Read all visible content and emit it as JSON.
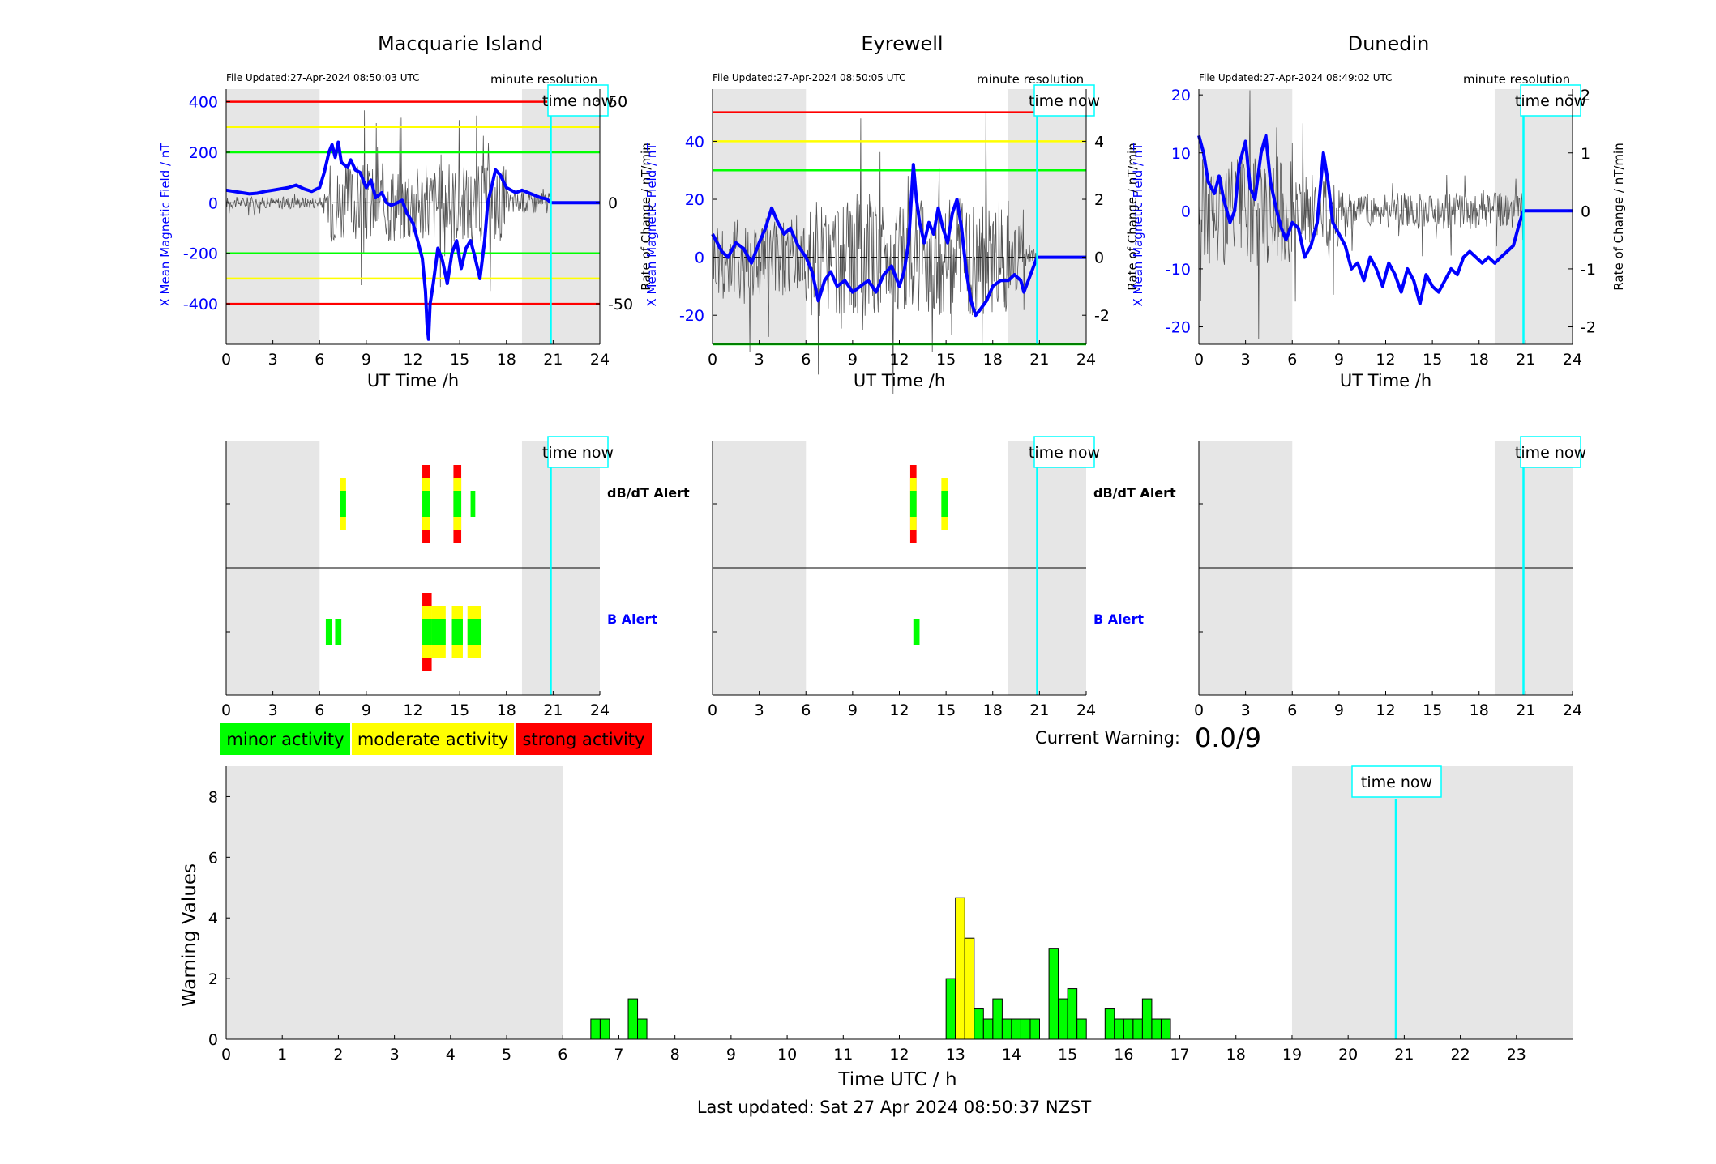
{
  "colors": {
    "blue": "#0000ff",
    "red": "#ff0000",
    "yellow": "#ffff00",
    "green": "#00ff00",
    "cyan": "#00ffff",
    "shade": "#e6e6e6"
  },
  "common": {
    "time_now_label": "time now",
    "minute_resolution": "minute resolution",
    "ut_xlabel": "UT Time /h",
    "left_ylabel": "X Mean Magnetic Field / nT",
    "right_ylabel": "Rate of Change / nT/min",
    "dbdt_alert": "dB/dT Alert",
    "b_alert": "B Alert",
    "xticks": [
      "0",
      "3",
      "6",
      "9",
      "12",
      "15",
      "18",
      "21",
      "24"
    ]
  },
  "legend": {
    "minor": "minor activity",
    "moderate": "moderate activity",
    "strong": "strong activity"
  },
  "warning": {
    "label": "Current Warning:",
    "value": "0.0/9"
  },
  "footer": {
    "last_updated": "Last updated: Sat 27 Apr 2024 08:50:37 NZST"
  },
  "chart_data": [
    {
      "type": "line",
      "title": "Macquarie Island",
      "file_updated": "File Updated:27-Apr-2024 08:50:03 UTC",
      "xlabel": "UT Time /h",
      "ylabel_left": "X Mean Magnetic Field / nT",
      "ylabel_right": "Rate of Change / nT/min",
      "xlim": [
        0,
        24
      ],
      "ylim_left": [
        -560,
        450
      ],
      "ylim_right": [
        -70,
        56
      ],
      "yticks_left": [
        400,
        200,
        0,
        -200,
        -400
      ],
      "yticks_right": [
        50,
        0,
        -50
      ],
      "shaded_hours": [
        [
          0,
          6
        ],
        [
          19,
          24
        ]
      ],
      "time_now": 20.85,
      "thresholds": [
        {
          "value": 400,
          "color": "red"
        },
        {
          "value": 300,
          "color": "yellow"
        },
        {
          "value": 200,
          "color": "green"
        },
        {
          "value": -200,
          "color": "green"
        },
        {
          "value": -300,
          "color": "yellow"
        },
        {
          "value": -400,
          "color": "red"
        }
      ],
      "series": [
        {
          "x": [
            0,
            0.5,
            1,
            1.5,
            2,
            2.5,
            3,
            3.5,
            4,
            4.5,
            5,
            5.5,
            6,
            6.3,
            6.6,
            6.8,
            7,
            7.2,
            7.4,
            7.6,
            7.8,
            8,
            8.3,
            8.6,
            9,
            9.3,
            9.6,
            10,
            10.3,
            10.6,
            11,
            11.3,
            11.6,
            12,
            12.3,
            12.6,
            12.8,
            12.9,
            13,
            13.1,
            13.3,
            13.6,
            13.9,
            14.2,
            14.5,
            14.8,
            15.1,
            15.4,
            15.7,
            16,
            16.3,
            16.6,
            16.8,
            17,
            17.3,
            17.6,
            18,
            18.3,
            18.6,
            19,
            19.4,
            19.8,
            20.2,
            20.6,
            20.85,
            21,
            24
          ],
          "values": [
            50,
            45,
            40,
            35,
            38,
            45,
            50,
            55,
            60,
            70,
            55,
            45,
            60,
            120,
            200,
            230,
            180,
            240,
            160,
            150,
            140,
            170,
            130,
            120,
            60,
            90,
            20,
            40,
            0,
            -10,
            0,
            10,
            -40,
            -80,
            -150,
            -220,
            -350,
            -480,
            -540,
            -400,
            -320,
            -180,
            -230,
            -320,
            -200,
            -150,
            -260,
            -180,
            -150,
            -220,
            -300,
            -150,
            0,
            50,
            130,
            110,
            60,
            50,
            40,
            50,
            40,
            30,
            20,
            15,
            0,
            0,
            0
          ]
        }
      ]
    },
    {
      "type": "line",
      "title": "Eyrewell",
      "file_updated": "File Updated:27-Apr-2024 08:50:05 UTC",
      "xlabel": "UT Time /h",
      "ylabel_left": "X Mean Magnetic Field / nT",
      "ylabel_right": "Rate of Change / nT/min",
      "xlim": [
        0,
        24
      ],
      "ylim_left": [
        -30,
        58
      ],
      "ylim_right": [
        -3,
        5.8
      ],
      "yticks_left": [
        40,
        20,
        0,
        -20
      ],
      "yticks_right": [
        4,
        2,
        0,
        -2
      ],
      "shaded_hours": [
        [
          0,
          6
        ],
        [
          19,
          24
        ]
      ],
      "time_now": 20.85,
      "thresholds": [
        {
          "value": 50,
          "color": "red"
        },
        {
          "value": 40,
          "color": "yellow"
        },
        {
          "value": 30,
          "color": "green"
        },
        {
          "value": -30,
          "color": "green"
        }
      ],
      "series": [
        {
          "x": [
            0,
            0.3,
            0.6,
            1,
            1.5,
            2,
            2.5,
            3,
            3.4,
            3.8,
            4.2,
            4.6,
            5,
            5.5,
            6,
            6.4,
            6.8,
            7.2,
            7.6,
            8,
            8.5,
            9,
            9.5,
            10,
            10.5,
            11,
            11.5,
            12,
            12.3,
            12.6,
            12.9,
            13.1,
            13.3,
            13.6,
            13.9,
            14.2,
            14.5,
            14.8,
            15.1,
            15.4,
            15.7,
            16,
            16.3,
            16.6,
            16.9,
            17.2,
            17.6,
            18,
            18.5,
            19,
            19.4,
            19.8,
            20,
            20.85,
            21,
            24
          ],
          "values": [
            8,
            5,
            2,
            0,
            5,
            3,
            -2,
            5,
            10,
            17,
            12,
            8,
            10,
            4,
            0,
            -5,
            -15,
            -8,
            -5,
            -10,
            -8,
            -12,
            -10,
            -8,
            -12,
            -6,
            -3,
            -10,
            -5,
            5,
            32,
            20,
            12,
            5,
            12,
            8,
            17,
            10,
            5,
            15,
            20,
            10,
            -5,
            -15,
            -20,
            -18,
            -15,
            -10,
            -8,
            -8,
            -6,
            -8,
            -12,
            0,
            0,
            0
          ]
        }
      ]
    },
    {
      "type": "line",
      "title": "Dunedin",
      "file_updated": "File Updated:27-Apr-2024 08:49:02 UTC",
      "xlabel": "UT Time /h",
      "ylabel_left": "X Mean Magnetic Field / nT",
      "ylabel_right": "Rate of Change / nT/min",
      "xlim": [
        0,
        24
      ],
      "ylim_left": [
        -23,
        21
      ],
      "ylim_right": [
        -2.3,
        2.1
      ],
      "yticks_left": [
        20,
        10,
        0,
        -10,
        -20
      ],
      "yticks_right": [
        2,
        1,
        0,
        -1,
        -2
      ],
      "shaded_hours": [
        [
          0,
          6
        ],
        [
          19,
          24
        ]
      ],
      "time_now": 20.85,
      "thresholds": [],
      "series": [
        {
          "x": [
            0,
            0.3,
            0.6,
            1,
            1.3,
            1.6,
            2,
            2.3,
            2.6,
            3,
            3.3,
            3.6,
            4,
            4.3,
            4.6,
            5,
            5.3,
            5.6,
            6,
            6.4,
            6.8,
            7.2,
            7.6,
            8,
            8.3,
            8.6,
            9,
            9.4,
            9.8,
            10.2,
            10.6,
            11,
            11.4,
            11.8,
            12.2,
            12.6,
            13,
            13.4,
            13.8,
            14.2,
            14.6,
            15,
            15.4,
            15.8,
            16.2,
            16.6,
            17,
            17.4,
            17.8,
            18.2,
            18.6,
            19,
            19.4,
            19.8,
            20.2,
            20.6,
            20.85,
            21,
            24
          ],
          "values": [
            13,
            10,
            5,
            3,
            6,
            2,
            -2,
            0,
            8,
            12,
            4,
            2,
            10,
            13,
            5,
            0,
            -3,
            -5,
            -2,
            -3,
            -8,
            -6,
            -2,
            10,
            5,
            -2,
            -4,
            -6,
            -10,
            -9,
            -12,
            -8,
            -10,
            -13,
            -9,
            -11,
            -14,
            -10,
            -12,
            -16,
            -11,
            -13,
            -14,
            -12,
            -10,
            -11,
            -8,
            -7,
            -8,
            -9,
            -8,
            -9,
            -8,
            -7,
            -6,
            -2,
            0,
            0,
            0
          ]
        }
      ]
    },
    {
      "type": "bar",
      "title": "",
      "ylabel": "Warning Values",
      "xlabel": "Time UTC / h",
      "xlim": [
        0,
        24
      ],
      "ylim": [
        0,
        9
      ],
      "yticks": [
        0,
        2,
        4,
        6,
        8
      ],
      "xticks": [
        "0",
        "1",
        "2",
        "3",
        "4",
        "5",
        "6",
        "7",
        "8",
        "9",
        "10",
        "11",
        "12",
        "13",
        "14",
        "15",
        "16",
        "17",
        "18",
        "19",
        "20",
        "21",
        "22",
        "23"
      ],
      "shaded_hours": [
        [
          0,
          6
        ],
        [
          19,
          24
        ]
      ],
      "time_now": 20.85,
      "bar_width_h": 0.1667,
      "bars": [
        {
          "x": 6.5,
          "value": 0.667,
          "color": "green"
        },
        {
          "x": 6.667,
          "value": 0.667,
          "color": "green"
        },
        {
          "x": 7.167,
          "value": 1.333,
          "color": "green"
        },
        {
          "x": 7.333,
          "value": 0.667,
          "color": "green"
        },
        {
          "x": 12.833,
          "value": 2.0,
          "color": "green"
        },
        {
          "x": 13.0,
          "value": 4.667,
          "color": "yellow"
        },
        {
          "x": 13.167,
          "value": 3.333,
          "color": "yellow"
        },
        {
          "x": 13.333,
          "value": 1.0,
          "color": "green"
        },
        {
          "x": 13.5,
          "value": 0.667,
          "color": "green"
        },
        {
          "x": 13.667,
          "value": 1.333,
          "color": "green"
        },
        {
          "x": 13.833,
          "value": 0.667,
          "color": "green"
        },
        {
          "x": 14.0,
          "value": 0.667,
          "color": "green"
        },
        {
          "x": 14.167,
          "value": 0.667,
          "color": "green"
        },
        {
          "x": 14.333,
          "value": 0.667,
          "color": "green"
        },
        {
          "x": 14.667,
          "value": 3.0,
          "color": "green"
        },
        {
          "x": 14.833,
          "value": 1.333,
          "color": "green"
        },
        {
          "x": 15.0,
          "value": 1.667,
          "color": "green"
        },
        {
          "x": 15.167,
          "value": 0.667,
          "color": "green"
        },
        {
          "x": 15.667,
          "value": 1.0,
          "color": "green"
        },
        {
          "x": 15.833,
          "value": 0.667,
          "color": "green"
        },
        {
          "x": 16.0,
          "value": 0.667,
          "color": "green"
        },
        {
          "x": 16.167,
          "value": 0.667,
          "color": "green"
        },
        {
          "x": 16.333,
          "value": 1.333,
          "color": "green"
        },
        {
          "x": 16.5,
          "value": 0.667,
          "color": "green"
        },
        {
          "x": 16.667,
          "value": 0.667,
          "color": "green"
        }
      ]
    }
  ],
  "alerts": [
    {
      "station": "Macquarie Island",
      "dbdt": [
        {
          "x": 7.3,
          "w": 0.4,
          "levels": [
            "yellow",
            "green"
          ]
        },
        {
          "x": 12.6,
          "w": 0.5,
          "levels": [
            "red",
            "yellow",
            "green"
          ]
        },
        {
          "x": 14.6,
          "w": 0.5,
          "levels": [
            "red",
            "yellow",
            "green"
          ]
        },
        {
          "x": 15.7,
          "w": 0.3,
          "levels": [
            "green"
          ]
        }
      ],
      "b": [
        {
          "x": 6.4,
          "w": 0.4,
          "levels": [
            "green"
          ]
        },
        {
          "x": 7.0,
          "w": 0.4,
          "levels": [
            "green"
          ]
        },
        {
          "x": 12.6,
          "w": 0.6,
          "levels": [
            "red",
            "yellow",
            "green"
          ]
        },
        {
          "x": 13.2,
          "w": 0.9,
          "levels": [
            "yellow",
            "green"
          ]
        },
        {
          "x": 14.5,
          "w": 0.7,
          "levels": [
            "yellow",
            "green"
          ]
        },
        {
          "x": 15.5,
          "w": 0.9,
          "levels": [
            "yellow",
            "green"
          ]
        }
      ]
    },
    {
      "station": "Eyrewell",
      "dbdt": [
        {
          "x": 12.7,
          "w": 0.4,
          "levels": [
            "red",
            "yellow",
            "green"
          ]
        },
        {
          "x": 14.7,
          "w": 0.4,
          "levels": [
            "yellow",
            "green"
          ]
        }
      ],
      "b": [
        {
          "x": 12.9,
          "w": 0.4,
          "levels": [
            "green"
          ]
        }
      ]
    },
    {
      "station": "Dunedin",
      "dbdt": [],
      "b": []
    }
  ]
}
